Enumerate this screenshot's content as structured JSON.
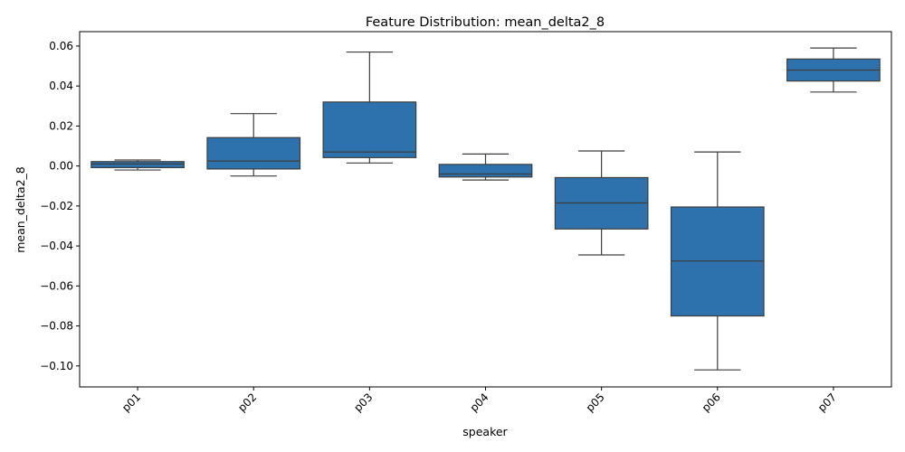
{
  "chart_data": {
    "type": "box",
    "title": "Feature Distribution: mean_delta2_8",
    "xlabel": "speaker",
    "ylabel": "mean_delta2_8",
    "ylim": [
      -0.1105,
      0.0672
    ],
    "yticks": [
      0.06,
      0.04,
      0.02,
      0.0,
      -0.02,
      -0.04,
      -0.06,
      -0.08,
      -0.1
    ],
    "ytick_labels": [
      "0.06",
      "0.04",
      "0.02",
      "0.00",
      "−0.02",
      "−0.04",
      "−0.06",
      "−0.08",
      "−0.10"
    ],
    "categories": [
      "p01",
      "p02",
      "p03",
      "p04",
      "p05",
      "p06",
      "p07"
    ],
    "grid": false,
    "box_color": "#2d72ac",
    "line_color": "#3d3d3d",
    "boxes": [
      {
        "speaker": "p01",
        "whisker_low": -0.002,
        "q1": -0.0008,
        "median": 0.001,
        "q3": 0.0022,
        "whisker_high": 0.003
      },
      {
        "speaker": "p02",
        "whisker_low": -0.005,
        "q1": -0.0015,
        "median": 0.0025,
        "q3": 0.0142,
        "whisker_high": 0.0262
      },
      {
        "speaker": "p03",
        "whisker_low": 0.0015,
        "q1": 0.0042,
        "median": 0.007,
        "q3": 0.032,
        "whisker_high": 0.057
      },
      {
        "speaker": "p04",
        "whisker_low": -0.007,
        "q1": -0.0055,
        "median": -0.004,
        "q3": 0.0008,
        "whisker_high": 0.006
      },
      {
        "speaker": "p05",
        "whisker_low": -0.0445,
        "q1": -0.0315,
        "median": -0.0185,
        "q3": -0.0058,
        "whisker_high": 0.0075
      },
      {
        "speaker": "p06",
        "whisker_low": -0.102,
        "q1": -0.075,
        "median": -0.0475,
        "q3": -0.0205,
        "whisker_high": 0.007
      },
      {
        "speaker": "p07",
        "whisker_low": 0.037,
        "q1": 0.0425,
        "median": 0.048,
        "q3": 0.0535,
        "whisker_high": 0.059
      }
    ]
  }
}
